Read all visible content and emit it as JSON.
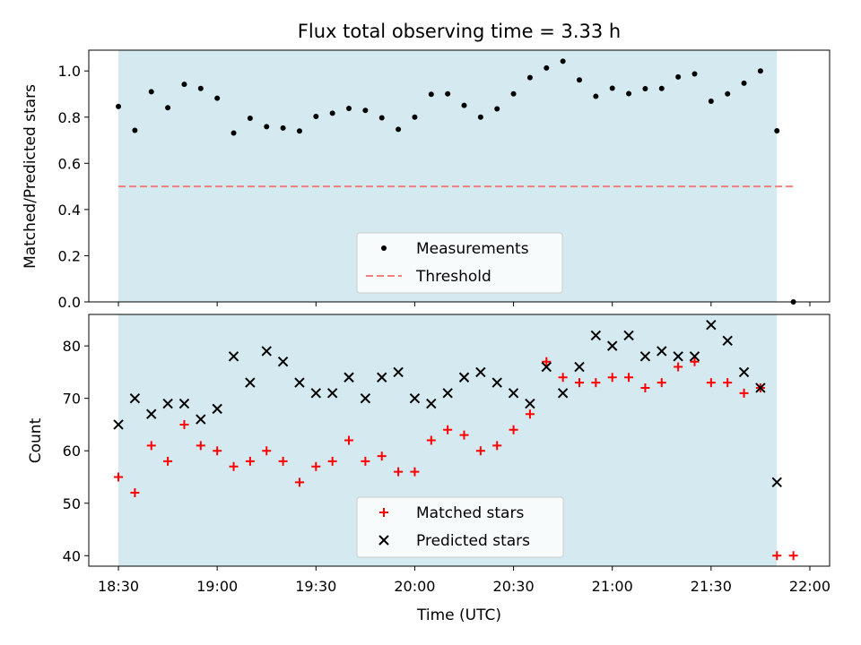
{
  "chart_data": [
    {
      "type": "scatter",
      "title": "Flux total observing time = 3.33 h",
      "xlabel": "",
      "ylabel": "Matched/Predicted stars",
      "ylim": [
        0.0,
        1.09
      ],
      "yticks": [
        "0.0",
        "0.2",
        "0.4",
        "0.6",
        "0.8",
        "1.0"
      ],
      "xlim": [
        "18:21",
        "22:06"
      ],
      "shaded_span": [
        "18:30",
        "21:50"
      ],
      "shade_color": "#d4eaf0",
      "legend": {
        "position": "lower-center",
        "entries": [
          "Measurements",
          "Threshold"
        ]
      },
      "series": [
        {
          "name": "Measurements",
          "marker": "dot",
          "color": "#000000",
          "x": [
            "18:30",
            "18:35",
            "18:40",
            "18:45",
            "18:50",
            "18:55",
            "19:00",
            "19:05",
            "19:10",
            "19:15",
            "19:20",
            "19:25",
            "19:30",
            "19:35",
            "19:40",
            "19:45",
            "19:50",
            "19:55",
            "20:00",
            "20:05",
            "20:10",
            "20:15",
            "20:20",
            "20:25",
            "20:30",
            "20:35",
            "20:40",
            "20:45",
            "20:50",
            "20:55",
            "21:00",
            "21:05",
            "21:10",
            "21:15",
            "21:20",
            "21:25",
            "21:30",
            "21:35",
            "21:40",
            "21:45",
            "21:50",
            "21:55"
          ],
          "y": [
            0.846,
            0.743,
            0.91,
            0.841,
            0.942,
            0.924,
            0.882,
            0.731,
            0.795,
            0.759,
            0.753,
            0.74,
            0.803,
            0.817,
            0.838,
            0.829,
            0.797,
            0.747,
            0.8,
            0.899,
            0.901,
            0.851,
            0.8,
            0.836,
            0.901,
            0.971,
            1.013,
            1.042,
            0.961,
            0.89,
            0.925,
            0.902,
            0.923,
            0.924,
            0.974,
            0.987,
            0.869,
            0.901,
            0.947,
            1.0,
            0.741,
            0.0
          ]
        },
        {
          "name": "Threshold",
          "style": "dashed",
          "color": "#f08080",
          "x": [
            "18:30",
            "21:55"
          ],
          "y": [
            0.5,
            0.5
          ]
        }
      ]
    },
    {
      "type": "scatter",
      "title": "",
      "xlabel": "Time (UTC)",
      "ylabel": "Count",
      "ylim": [
        38,
        86
      ],
      "yticks": [
        "40",
        "50",
        "60",
        "70",
        "80"
      ],
      "xlim": [
        "18:21",
        "22:06"
      ],
      "xticks": [
        "18:30",
        "19:00",
        "19:30",
        "20:00",
        "20:30",
        "21:00",
        "21:30",
        "22:00"
      ],
      "shaded_span": [
        "18:30",
        "21:50"
      ],
      "shade_color": "#d4eaf0",
      "legend": {
        "position": "lower-center",
        "entries": [
          "Matched stars",
          "Predicted stars"
        ]
      },
      "series": [
        {
          "name": "Matched stars",
          "marker": "plus",
          "color": "#ff0000",
          "x": [
            "18:30",
            "18:35",
            "18:40",
            "18:45",
            "18:50",
            "18:55",
            "19:00",
            "19:05",
            "19:10",
            "19:15",
            "19:20",
            "19:25",
            "19:30",
            "19:35",
            "19:40",
            "19:45",
            "19:50",
            "19:55",
            "20:00",
            "20:05",
            "20:10",
            "20:15",
            "20:20",
            "20:25",
            "20:30",
            "20:35",
            "20:40",
            "20:45",
            "20:50",
            "20:55",
            "21:00",
            "21:05",
            "21:10",
            "21:15",
            "21:20",
            "21:25",
            "21:30",
            "21:35",
            "21:40",
            "21:45",
            "21:50",
            "21:55"
          ],
          "y": [
            55,
            52,
            61,
            58,
            65,
            61,
            60,
            57,
            58,
            60,
            58,
            54,
            57,
            58,
            62,
            58,
            59,
            56,
            56,
            62,
            64,
            63,
            60,
            61,
            64,
            67,
            77,
            74,
            73,
            73,
            74,
            74,
            72,
            73,
            76,
            77,
            73,
            73,
            71,
            72,
            40,
            40
          ]
        },
        {
          "name": "Predicted stars",
          "marker": "x",
          "color": "#000000",
          "x": [
            "18:30",
            "18:35",
            "18:40",
            "18:45",
            "18:50",
            "18:55",
            "19:00",
            "19:05",
            "19:10",
            "19:15",
            "19:20",
            "19:25",
            "19:30",
            "19:35",
            "19:40",
            "19:45",
            "19:50",
            "19:55",
            "20:00",
            "20:05",
            "20:10",
            "20:15",
            "20:20",
            "20:25",
            "20:30",
            "20:35",
            "20:40",
            "20:45",
            "20:50",
            "20:55",
            "21:00",
            "21:05",
            "21:10",
            "21:15",
            "21:20",
            "21:25",
            "21:30",
            "21:35",
            "21:40",
            "21:45",
            "21:50"
          ],
          "y": [
            65,
            70,
            67,
            69,
            69,
            66,
            68,
            78,
            73,
            79,
            77,
            73,
            71,
            71,
            74,
            70,
            74,
            75,
            70,
            69,
            71,
            74,
            75,
            73,
            71,
            69,
            76,
            71,
            76,
            82,
            80,
            82,
            78,
            79,
            78,
            78,
            84,
            81,
            75,
            72,
            54
          ]
        }
      ]
    }
  ]
}
